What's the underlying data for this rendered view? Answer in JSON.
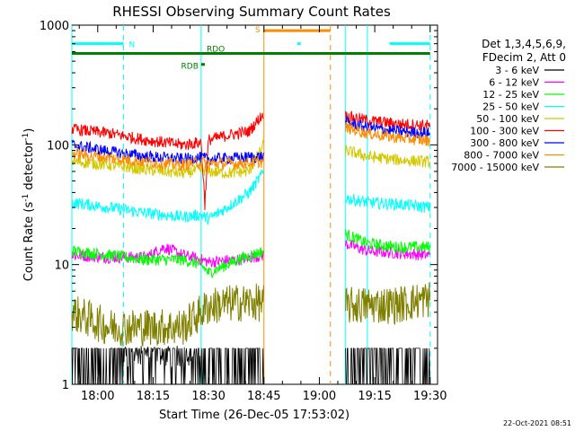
{
  "chart_data": {
    "type": "line",
    "title": "RHESSI Observing Summary Count Rates",
    "xlabel": "Start Time (26-Dec-05 17:53:02)",
    "ylabel": "Count Rate (s⁻¹ detector⁻¹)",
    "y_scale": "log",
    "ylim": [
      1,
      1000
    ],
    "xlim_minutes_after_17_53": [
      0,
      99
    ],
    "x_ticks": [
      {
        "label": "18:00",
        "t": 7
      },
      {
        "label": "18:15",
        "t": 22
      },
      {
        "label": "18:30",
        "t": 37
      },
      {
        "label": "18:45",
        "t": 52
      },
      {
        "label": "19:00",
        "t": 67
      },
      {
        "label": "19:15",
        "t": 82
      },
      {
        "label": "19:30",
        "t": 97
      }
    ],
    "y_ticks": [
      {
        "label": "1",
        "v": 1
      },
      {
        "label": "10",
        "v": 10
      },
      {
        "label": "100",
        "v": 100
      },
      {
        "label": "1000",
        "v": 1000
      }
    ],
    "legend_header": [
      "Det 1,3,4,5,6,9,",
      "FDecim 2, Att 0"
    ],
    "legend_position": "right",
    "series": [
      {
        "name": "3 - 6 keV",
        "color": "#000000",
        "x": [
          0,
          10,
          20,
          30,
          37,
          45,
          52,
          74,
          80,
          88,
          97
        ],
        "y": [
          1.5,
          1.5,
          1.5,
          1.5,
          1.5,
          1.5,
          1.5,
          1.5,
          1.5,
          1.5,
          1.5
        ]
      },
      {
        "name": "6 - 12 keV",
        "color": "#ff00ff",
        "x": [
          0,
          10,
          20,
          25,
          30,
          35,
          37,
          45,
          52,
          74,
          80,
          88,
          97
        ],
        "y": [
          12,
          11.5,
          11.5,
          14,
          12,
          11,
          10.5,
          11,
          12,
          15,
          13,
          12.5,
          12
        ]
      },
      {
        "name": "12 - 25 keV",
        "color": "#00ff00",
        "x": [
          0,
          10,
          20,
          30,
          35,
          37,
          45,
          52,
          74,
          80,
          88,
          97
        ],
        "y": [
          13,
          12,
          11,
          11,
          10,
          8.5,
          11,
          13,
          18,
          15,
          14,
          14
        ]
      },
      {
        "name": "25 - 50 keV",
        "color": "#00ffff",
        "x": [
          0,
          10,
          20,
          30,
          35,
          37,
          42,
          48,
          52,
          74,
          80,
          88,
          97
        ],
        "y": [
          33,
          30,
          27,
          25,
          26,
          24,
          30,
          40,
          60,
          36,
          33,
          32,
          30
        ]
      },
      {
        "name": "50 - 100 keV",
        "color": "#d4c800",
        "x": [
          0,
          10,
          20,
          30,
          35,
          37,
          42,
          48,
          52,
          74,
          80,
          88,
          97
        ],
        "y": [
          73,
          68,
          62,
          58,
          62,
          60,
          58,
          60,
          100,
          90,
          80,
          75,
          72
        ]
      },
      {
        "name": "100 - 300 keV",
        "color": "#ff0000",
        "x": [
          0,
          10,
          20,
          30,
          35,
          36,
          37,
          42,
          48,
          52,
          74,
          80,
          88,
          97
        ],
        "y": [
          135,
          125,
          110,
          100,
          105,
          32,
          110,
          120,
          130,
          185,
          175,
          160,
          150,
          145
        ]
      },
      {
        "name": "300 - 800 keV",
        "color": "#0000ff",
        "x": [
          0,
          10,
          20,
          30,
          35,
          37,
          45,
          52,
          74,
          80,
          88,
          97
        ],
        "y": [
          100,
          88,
          80,
          76,
          78,
          76,
          78,
          80,
          155,
          140,
          130,
          125
        ]
      },
      {
        "name": "800 - 7000 keV",
        "color": "#ff8c00",
        "x": [
          0,
          10,
          20,
          30,
          35,
          37,
          45,
          52,
          74,
          80,
          88,
          97
        ],
        "y": [
          85,
          78,
          72,
          68,
          72,
          70,
          70,
          72,
          140,
          125,
          115,
          108
        ]
      },
      {
        "name": "7000 - 15000 keV",
        "color": "#808000",
        "x": [
          0,
          10,
          20,
          30,
          35,
          37,
          45,
          52,
          74,
          80,
          88,
          97
        ],
        "y": [
          4.0,
          3.0,
          3.0,
          3.0,
          4.0,
          4.5,
          4.8,
          4.8,
          4.5,
          4.6,
          4.6,
          5.2
        ]
      }
    ],
    "flag_bars": [
      {
        "label": "N",
        "color": "#00ffff",
        "y_value": 700,
        "segments": [
          [
            0,
            14
          ],
          [
            61,
            61
          ],
          [
            86,
            97
          ]
        ]
      },
      {
        "label": "S",
        "color": "#ff8c00",
        "y_value": 900,
        "segments": [
          [
            52,
            70
          ]
        ]
      },
      {
        "label": "RDO",
        "color": "#008000",
        "y_value": 580,
        "segments": [
          [
            0,
            97
          ]
        ]
      },
      {
        "label": "RDB",
        "color": "#008000",
        "y_value": 470,
        "segments": [
          [
            35,
            36
          ]
        ]
      }
    ],
    "v_lines": [
      {
        "t": 0,
        "color": "#00ffff",
        "dashed": false
      },
      {
        "t": 14,
        "color": "#00ffff",
        "dashed": true
      },
      {
        "t": 35,
        "color": "#00ffff",
        "dashed": false
      },
      {
        "t": 52,
        "color": "#ff8c00",
        "dashed": false
      },
      {
        "t": 70,
        "color": "#ff8c00",
        "dashed": true
      },
      {
        "t": 74,
        "color": "#00ffff",
        "dashed": false
      },
      {
        "t": 80,
        "color": "#00ffff",
        "dashed": false
      },
      {
        "t": 97,
        "color": "#00ffff",
        "dashed": true
      }
    ],
    "data_gaps": [
      [
        52,
        74
      ]
    ],
    "footer_date": "22-Oct-2021 08:51"
  }
}
